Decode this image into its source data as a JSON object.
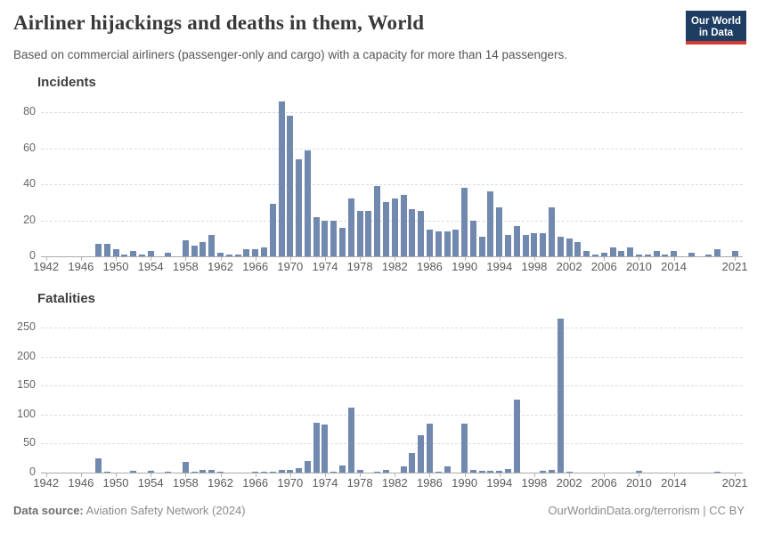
{
  "header": {
    "title": "Airliner hijackings and deaths in them, World",
    "subtitle": "Based on commercial airliners (passenger-only and cargo) with a capacity for more than 14 passengers.",
    "logo": {
      "line1": "Our World",
      "line2": "in Data"
    }
  },
  "footer": {
    "source_label": "Data source:",
    "source_text": " Aviation Safety Network (2024)",
    "right_text": "OurWorldinData.org/terrorism | CC BY"
  },
  "colors": {
    "bar": "#7189ae",
    "logo_bg": "#1d3d63",
    "logo_stripe": "#d23a32",
    "gridline": "#dcdcdc",
    "axis": "#ababab"
  },
  "chart_data": [
    {
      "type": "bar",
      "title": "Incidents",
      "x": [
        1942,
        1943,
        1944,
        1945,
        1946,
        1947,
        1948,
        1949,
        1950,
        1951,
        1952,
        1953,
        1954,
        1955,
        1956,
        1957,
        1958,
        1959,
        1960,
        1961,
        1962,
        1963,
        1964,
        1965,
        1966,
        1967,
        1968,
        1969,
        1970,
        1971,
        1972,
        1973,
        1974,
        1975,
        1976,
        1977,
        1978,
        1979,
        1980,
        1981,
        1982,
        1983,
        1984,
        1985,
        1986,
        1987,
        1988,
        1989,
        1990,
        1991,
        1992,
        1993,
        1994,
        1995,
        1996,
        1997,
        1998,
        1999,
        2000,
        2001,
        2002,
        2003,
        2004,
        2005,
        2006,
        2007,
        2008,
        2009,
        2010,
        2011,
        2012,
        2013,
        2014,
        2015,
        2016,
        2017,
        2018,
        2019,
        2020,
        2021
      ],
      "values": [
        0,
        0,
        0,
        0,
        0,
        0,
        7,
        7,
        4,
        1,
        3,
        1,
        3,
        0,
        2,
        0,
        9,
        6,
        8,
        12,
        2,
        1,
        1,
        4,
        4,
        5,
        29,
        86,
        78,
        54,
        59,
        22,
        20,
        20,
        16,
        32,
        25,
        25,
        39,
        30,
        32,
        34,
        26,
        25,
        15,
        14,
        14,
        15,
        38,
        20,
        11,
        36,
        27,
        12,
        17,
        12,
        13,
        13,
        27,
        11,
        10,
        8,
        3,
        1,
        2,
        5,
        3,
        5,
        1,
        1,
        3,
        1,
        3,
        0,
        2,
        0,
        1,
        4,
        0,
        3
      ],
      "xticks": [
        1942,
        1946,
        1950,
        1954,
        1958,
        1962,
        1966,
        1970,
        1974,
        1978,
        1982,
        1986,
        1990,
        1994,
        1998,
        2002,
        2006,
        2010,
        2014,
        2021
      ],
      "yticks": [
        0,
        20,
        40,
        60,
        80
      ],
      "ylim": [
        0,
        88
      ],
      "xlabel": "",
      "ylabel": "",
      "grid": true,
      "legend": "none"
    },
    {
      "type": "bar",
      "title": "Fatalities",
      "x": [
        1942,
        1943,
        1944,
        1945,
        1946,
        1947,
        1948,
        1949,
        1950,
        1951,
        1952,
        1953,
        1954,
        1955,
        1956,
        1957,
        1958,
        1959,
        1960,
        1961,
        1962,
        1963,
        1964,
        1965,
        1966,
        1967,
        1968,
        1969,
        1970,
        1971,
        1972,
        1973,
        1974,
        1975,
        1976,
        1977,
        1978,
        1979,
        1980,
        1981,
        1982,
        1983,
        1984,
        1985,
        1986,
        1987,
        1988,
        1989,
        1990,
        1991,
        1992,
        1993,
        1994,
        1995,
        1996,
        1997,
        1998,
        1999,
        2000,
        2001,
        2002,
        2003,
        2004,
        2005,
        2006,
        2007,
        2008,
        2009,
        2010,
        2011,
        2012,
        2013,
        2014,
        2015,
        2016,
        2017,
        2018,
        2019,
        2020,
        2021
      ],
      "values": [
        0,
        0,
        0,
        0,
        0,
        0,
        25,
        2,
        0,
        0,
        3,
        0,
        3,
        0,
        2,
        0,
        18,
        2,
        4,
        4,
        1,
        0,
        0,
        0,
        2,
        1,
        2,
        4,
        5,
        7,
        20,
        86,
        82,
        2,
        13,
        112,
        4,
        0,
        2,
        5,
        0,
        10,
        33,
        64,
        85,
        2,
        11,
        0,
        85,
        4,
        3,
        3,
        3,
        6,
        125,
        0,
        0,
        3,
        5,
        265,
        2,
        0,
        0,
        0,
        0,
        0,
        0,
        0,
        3,
        0,
        0,
        0,
        0,
        0,
        0,
        0,
        0,
        2,
        0,
        0
      ],
      "xticks": [
        1942,
        1946,
        1950,
        1954,
        1958,
        1962,
        1966,
        1970,
        1974,
        1978,
        1982,
        1986,
        1990,
        1994,
        1998,
        2002,
        2006,
        2010,
        2014,
        2021
      ],
      "yticks": [
        0,
        50,
        100,
        150,
        200,
        250
      ],
      "ylim": [
        0,
        272
      ],
      "xlabel": "",
      "ylabel": "",
      "grid": true,
      "legend": "none"
    }
  ]
}
